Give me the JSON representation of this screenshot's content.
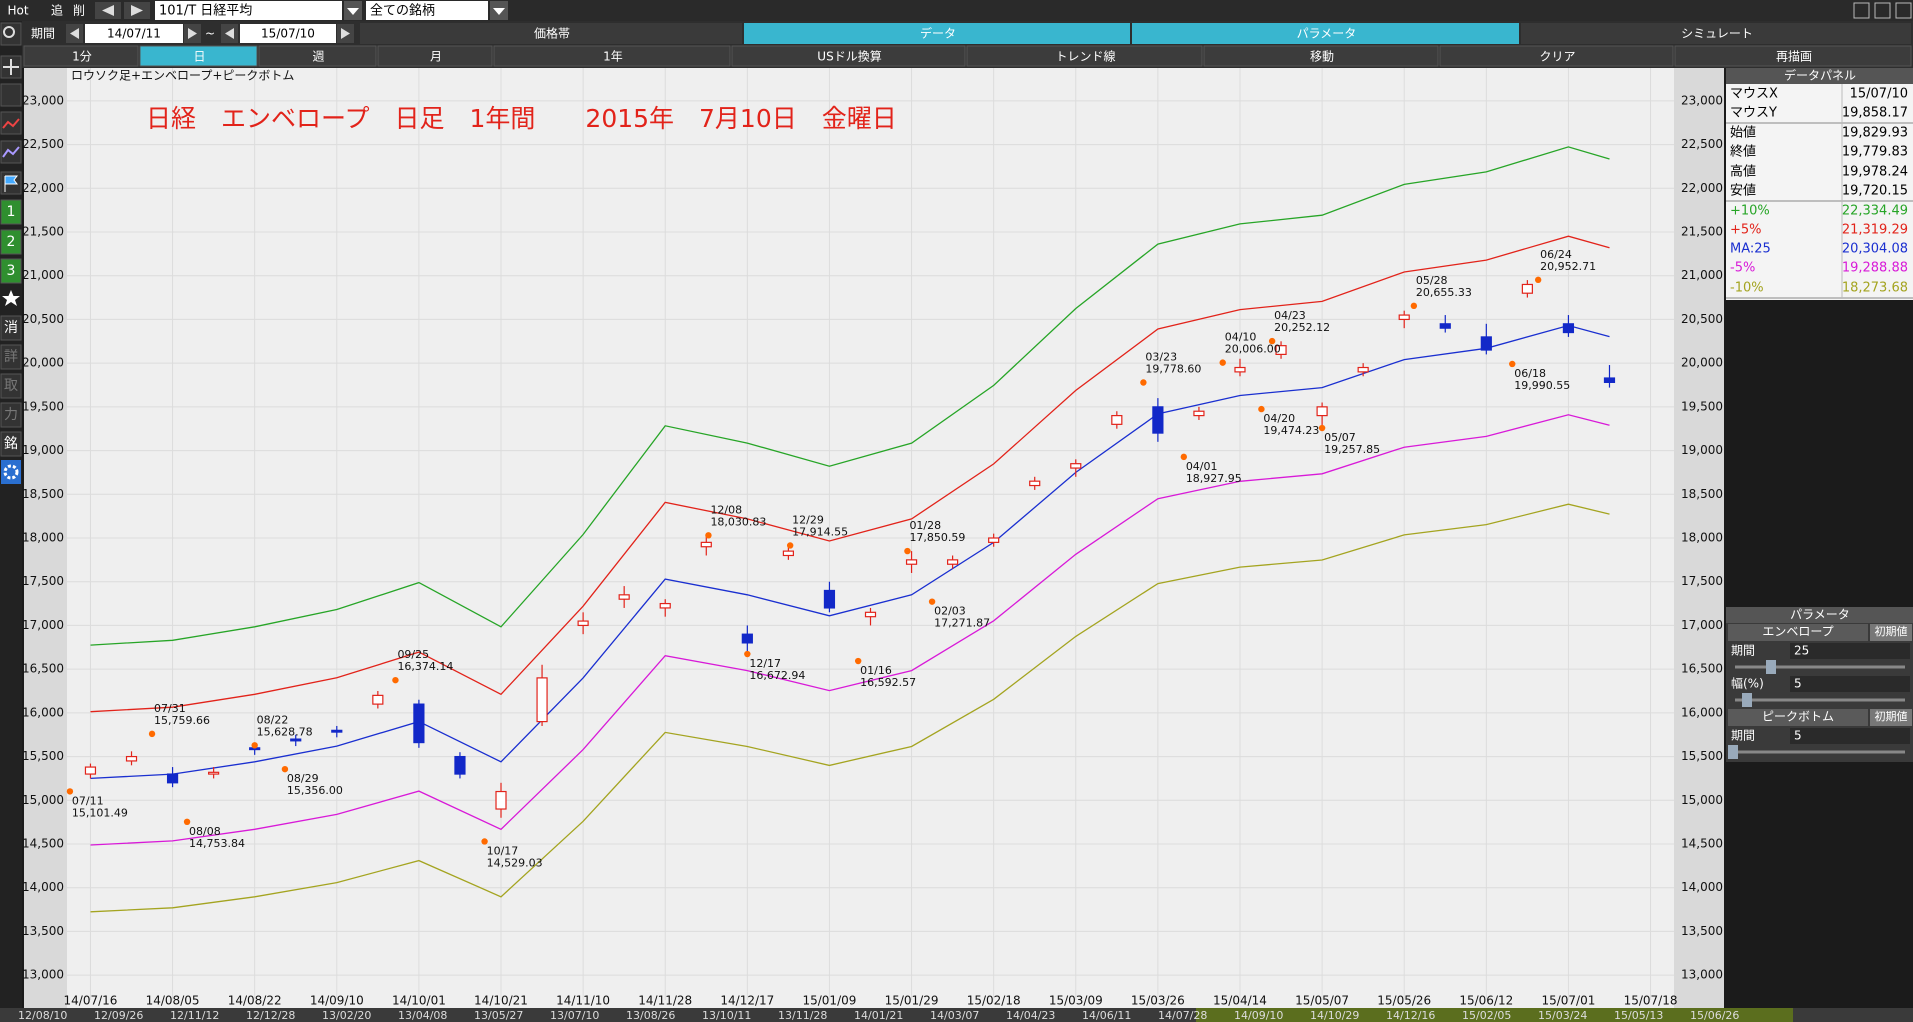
{
  "toolbar": {
    "hot": "Hot",
    "add": "追",
    "del": "削",
    "symbol": "101/T 日経平均",
    "universe": "全ての銘柄",
    "period": "期間",
    "from": "14/07/11",
    "tilde": "~",
    "to": "15/07/10",
    "tabs": [
      "価格帯",
      "データ",
      "パラメータ",
      "シミュレート"
    ],
    "buttons": [
      "1分",
      "日",
      "週",
      "月",
      "1年",
      "USドル換算",
      "トレンド線",
      "移動",
      "クリア",
      "再描画"
    ]
  },
  "sidebar": [
    "1",
    "2",
    "3",
    "消",
    "詳",
    "取",
    "力",
    "銘"
  ],
  "data_panel": {
    "title": "データパネル",
    "rows": [
      [
        "マウスX",
        "15/07/10"
      ],
      [
        "マウスY",
        "19,858.17"
      ],
      [
        "始値",
        "19,829.93"
      ],
      [
        "終値",
        "19,779.83"
      ],
      [
        "高値",
        "19,978.24"
      ],
      [
        "安値",
        "19,720.15"
      ],
      [
        "+10%",
        "22,334.49"
      ],
      [
        "+5%",
        "21,319.29"
      ],
      [
        "MA:25",
        "20,304.08"
      ],
      [
        "-5%",
        "19,288.88"
      ],
      [
        "-10%",
        "18,273.68"
      ]
    ]
  },
  "param_panel": {
    "title": "パラメータ",
    "envelope": "エンベロープ",
    "reset": "初期値",
    "period_label": "期間",
    "period": "25",
    "width_label": "幅(%)",
    "width": "5",
    "peak_bottom": "ピークボトム",
    "pb_period_label": "期間",
    "pb_period": "5"
  },
  "navigator": [
    "12/08/10",
    "12/09/26",
    "12/11/12",
    "12/12/28",
    "13/02/20",
    "13/04/08",
    "13/05/27",
    "13/07/10",
    "13/08/26",
    "13/10/11",
    "13/11/28",
    "14/01/21",
    "14/03/07",
    "14/04/23",
    "14/06/11",
    "14/07/28",
    "14/09/10",
    "14/10/29",
    "14/12/16",
    "15/02/05",
    "15/03/24",
    "15/05/13",
    "15/06/26"
  ],
  "chart_data": {
    "type": "candlestick",
    "title": "日経　エンベロープ　日足　1年間　　2015年　7月10日　金曜日",
    "subtitle": "ロウソク足+エンベロープ+ピークボトム",
    "xlim": [
      -1,
      273
    ],
    "xticks": [
      {
        "value": 3,
        "label": "14/07/16"
      },
      {
        "value": 17,
        "label": "14/08/05"
      },
      {
        "value": 31,
        "label": "14/08/22"
      },
      {
        "value": 45,
        "label": "14/09/10"
      },
      {
        "value": 59,
        "label": "14/10/01"
      },
      {
        "value": 73,
        "label": "14/10/21"
      },
      {
        "value": 87,
        "label": "14/11/10"
      },
      {
        "value": 101,
        "label": "14/11/28"
      },
      {
        "value": 115,
        "label": "14/12/17"
      },
      {
        "value": 129,
        "label": "15/01/09"
      },
      {
        "value": 143,
        "label": "15/01/29"
      },
      {
        "value": 157,
        "label": "15/02/18"
      },
      {
        "value": 171,
        "label": "15/03/09"
      },
      {
        "value": 185,
        "label": "15/03/26"
      },
      {
        "value": 199,
        "label": "15/04/14"
      },
      {
        "value": 213,
        "label": "15/05/07"
      },
      {
        "value": 227,
        "label": "15/05/26"
      },
      {
        "value": 241,
        "label": "15/06/12"
      },
      {
        "value": 255,
        "label": "15/07/01"
      },
      {
        "value": 269,
        "label": "15/07/18"
      }
    ],
    "ylim": [
      12750,
      23250
    ],
    "yticks": [
      {
        "value": 13000,
        "label": "13,000"
      },
      {
        "value": 13500,
        "label": "13,500"
      },
      {
        "value": 14000,
        "label": "14,000"
      },
      {
        "value": 14500,
        "label": "14,500"
      },
      {
        "value": 15000,
        "label": "15,000"
      },
      {
        "value": 15500,
        "label": "15,500"
      },
      {
        "value": 16000,
        "label": "16,000"
      },
      {
        "value": 16500,
        "label": "16,500"
      },
      {
        "value": 17000,
        "label": "17,000"
      },
      {
        "value": 17500,
        "label": "17,500"
      },
      {
        "value": 18000,
        "label": "18,000"
      },
      {
        "value": 18500,
        "label": "18,500"
      },
      {
        "value": 19000,
        "label": "19,000"
      },
      {
        "value": 19500,
        "label": "19,500"
      },
      {
        "value": 20000,
        "label": "20,000"
      },
      {
        "value": 20500,
        "label": "20,500"
      },
      {
        "value": 21000,
        "label": "21,000"
      },
      {
        "value": 21500,
        "label": "21,500"
      },
      {
        "value": 22000,
        "label": "22,000"
      },
      {
        "value": 22500,
        "label": "22,500"
      },
      {
        "value": 23000,
        "label": "23,000"
      }
    ],
    "grid": true,
    "candles": {
      "up_color": "#e2231a",
      "down_color": "#1228c8",
      "x": [
        3,
        10,
        17,
        24,
        31,
        38,
        45,
        52,
        59,
        66,
        73,
        80,
        87,
        94,
        101,
        108,
        115,
        122,
        129,
        136,
        143,
        150,
        157,
        164,
        171,
        178,
        185,
        192,
        199,
        206,
        213,
        220,
        227,
        234,
        241,
        248,
        255,
        262
      ],
      "open": [
        15300,
        15450,
        15300,
        15300,
        15600,
        15700,
        15800,
        16100,
        16100,
        15500,
        14900,
        15900,
        17000,
        17300,
        17200,
        17900,
        16900,
        17800,
        17400,
        17100,
        17700,
        17700,
        17950,
        18600,
        18800,
        19300,
        19500,
        19400,
        19900,
        20100,
        19400,
        19900,
        20500,
        20450,
        20300,
        20800,
        20450,
        19829.93
      ],
      "high": [
        15420,
        15560,
        15380,
        15380,
        15650,
        15750,
        15850,
        16250,
        16150,
        15550,
        15200,
        16550,
        17150,
        17450,
        17300,
        18030,
        17000,
        17900,
        17500,
        17200,
        17850,
        17800,
        18050,
        18700,
        18900,
        19450,
        19600,
        19500,
        20050,
        20250,
        19550,
        20000,
        20600,
        20550,
        20450,
        20950,
        20550,
        19978.24
      ],
      "low": [
        15250,
        15400,
        15150,
        15250,
        15520,
        15620,
        15720,
        16050,
        15600,
        15250,
        14800,
        15850,
        16900,
        17200,
        17100,
        17800,
        16700,
        17750,
        17150,
        17000,
        17600,
        17650,
        17900,
        18550,
        18700,
        19250,
        19100,
        19350,
        19850,
        20050,
        19250,
        19850,
        20400,
        20350,
        20100,
        20750,
        20300,
        19720.15
      ],
      "close": [
        15380,
        15500,
        15200,
        15320,
        15580,
        15680,
        15780,
        16200,
        15660,
        15300,
        15100,
        16400,
        17050,
        17350,
        17250,
        17950,
        16800,
        17850,
        17200,
        17150,
        17750,
        17750,
        18000,
        18650,
        18850,
        19400,
        19200,
        19450,
        19950,
        20200,
        19500,
        19950,
        20550,
        20400,
        20150,
        20900,
        20350,
        19779.83
      ]
    },
    "line_x": [
      3,
      17,
      31,
      45,
      59,
      73,
      87,
      101,
      115,
      129,
      143,
      157,
      171,
      185,
      199,
      213,
      227,
      241,
      255,
      262
    ],
    "series": [
      {
        "name": "+10%",
        "color": "#27a527",
        "values": [
          16775,
          16830,
          16984,
          17182,
          17490,
          16984,
          18040,
          19283,
          19085,
          18821,
          19085,
          19745,
          20625,
          21362,
          21593,
          21692,
          22044,
          22187,
          22473,
          22334.49
        ]
      },
      {
        "name": "+5%",
        "color": "#e2231a",
        "values": [
          16013,
          16065,
          16212,
          16401,
          16695,
          16212,
          17220,
          18407,
          18218,
          17966,
          18218,
          18848,
          19688,
          20391,
          20612,
          20706,
          21042,
          21179,
          21452,
          21319.29
        ]
      },
      {
        "name": "MA:25",
        "color": "#1a2fd0",
        "values": [
          15250,
          15300,
          15440,
          15620,
          15900,
          15440,
          16400,
          17530,
          17350,
          17110,
          17350,
          17950,
          18750,
          19420,
          19630,
          19720,
          20040,
          20170,
          20430,
          20304.08
        ]
      },
      {
        "name": "-5%",
        "color": "#d81ad8",
        "values": [
          14488,
          14535,
          14668,
          14839,
          15105,
          14668,
          15580,
          16654,
          16483,
          16255,
          16483,
          17053,
          17813,
          18449,
          18649,
          18734,
          19038,
          19162,
          19409,
          19288.88
        ]
      },
      {
        "name": "-10%",
        "color": "#a4a420",
        "values": [
          13725,
          13770,
          13896,
          14058,
          14310,
          13896,
          14760,
          15777,
          15615,
          15399,
          15615,
          16155,
          16875,
          17478,
          17667,
          17748,
          18036,
          18153,
          18387,
          18273.68
        ]
      }
    ],
    "marker_color": "#ff6a00",
    "peaks_bottoms": [
      {
        "kind": "bottom",
        "date": "07/11",
        "value": 15101.49,
        "value_label": "15,101.49"
      },
      {
        "kind": "peak",
        "date": "07/31",
        "value": 15759.66,
        "value_label": "15,759.66"
      },
      {
        "kind": "bottom",
        "date": "08/08",
        "value": 14753.84,
        "value_label": "14,753.84"
      },
      {
        "kind": "peak",
        "date": "08/22",
        "value": 15628.78,
        "value_label": "15,628.78"
      },
      {
        "kind": "bottom",
        "date": "08/29",
        "value": 15356,
        "value_label": "15,356.00"
      },
      {
        "kind": "peak",
        "date": "09/25",
        "value": 16374.14,
        "value_label": "16,374.14"
      },
      {
        "kind": "bottom",
        "date": "10/17",
        "value": 14529.03,
        "value_label": "14,529.03"
      },
      {
        "kind": "peak",
        "date": "12/08",
        "value": 18030.83,
        "value_label": "18,030.83"
      },
      {
        "kind": "bottom",
        "date": "12/17",
        "value": 16672.94,
        "value_label": "16,672.94"
      },
      {
        "kind": "peak",
        "date": "12/29",
        "value": 17914.55,
        "value_label": "17,914.55"
      },
      {
        "kind": "bottom",
        "date": "01/16",
        "value": 16592.57,
        "value_label": "16,592.57"
      },
      {
        "kind": "peak",
        "date": "01/28",
        "value": 17850.59,
        "value_label": "17,850.59"
      },
      {
        "kind": "bottom",
        "date": "02/03",
        "value": 17271.87,
        "value_label": "17,271.87"
      },
      {
        "kind": "peak",
        "date": "03/23",
        "value": 19778.6,
        "value_label": "19,778.60"
      },
      {
        "kind": "bottom",
        "date": "04/01",
        "value": 18927.95,
        "value_label": "18,927.95"
      },
      {
        "kind": "peak",
        "date": "04/10",
        "value": 20006,
        "value_label": "20,006.00"
      },
      {
        "kind": "bottom",
        "date": "04/20",
        "value": 19474.23,
        "value_label": "19,474.23"
      },
      {
        "kind": "peak",
        "date": "04/23",
        "value": 20252.12,
        "value_label": "20,252.12"
      },
      {
        "kind": "bottom",
        "date": "05/07",
        "value": 19257.85,
        "value_label": "19,257.85"
      },
      {
        "kind": "peak",
        "date": "05/28",
        "value": 20655.33,
        "value_label": "20,655.33"
      },
      {
        "kind": "bottom",
        "date": "06/18",
        "value": 19990.55,
        "value_label": "19,990.55"
      },
      {
        "kind": "peak",
        "date": "06/24",
        "value": 20952.71,
        "value_label": "20,952.71"
      }
    ]
  }
}
